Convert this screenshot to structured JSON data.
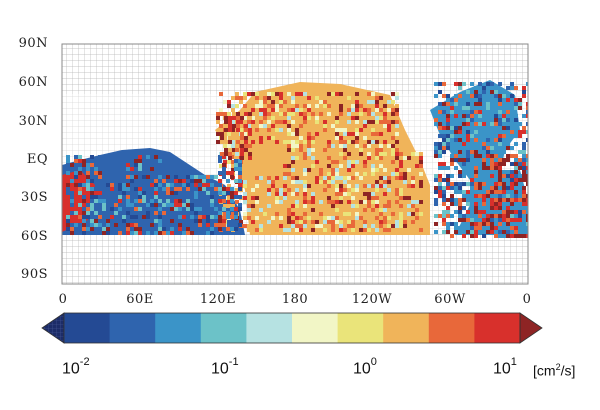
{
  "map": {
    "lat_labels": [
      "90N",
      "60N",
      "30N",
      "EQ",
      "30S",
      "60S",
      "90S"
    ],
    "lon_labels": [
      "0",
      "60E",
      "120E",
      "180",
      "120W",
      "60W",
      "0"
    ]
  },
  "colorbar": {
    "colors": [
      "#1c2c68",
      "#244a94",
      "#2f64ae",
      "#3b94c8",
      "#6cc2c8",
      "#b6e2e2",
      "#f2f6c6",
      "#eae47a",
      "#f0b45a",
      "#e8683a",
      "#d8302c",
      "#8e2424"
    ],
    "tick_labels": [
      {
        "base": "10",
        "exp": "-2"
      },
      {
        "base": "10",
        "exp": "-1"
      },
      {
        "base": "10",
        "exp": "0"
      },
      {
        "base": "10",
        "exp": "1"
      }
    ],
    "units_prefix": "[cm",
    "units_exp": "2",
    "units_suffix": "/s]"
  }
}
